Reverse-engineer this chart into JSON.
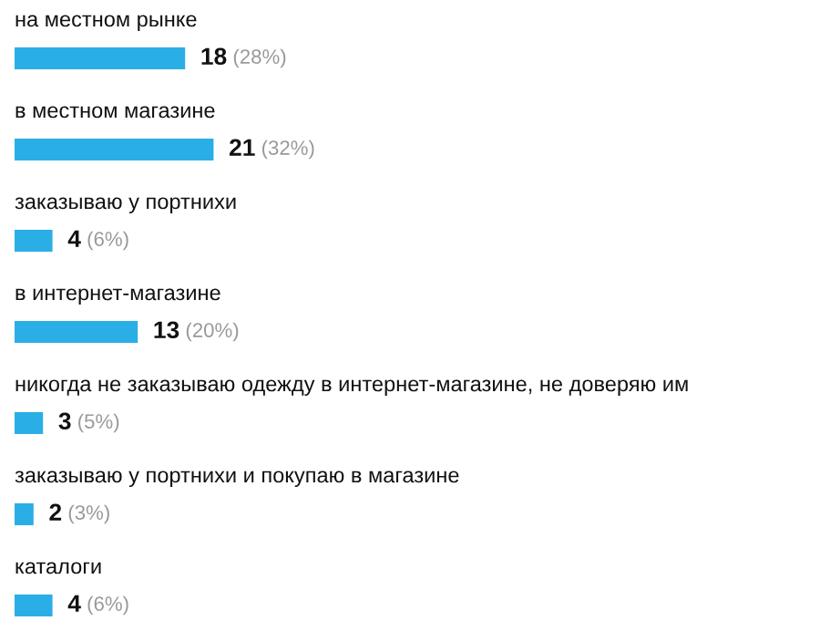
{
  "chart_data": {
    "type": "bar",
    "orientation": "horizontal",
    "categories": [
      "на местном рынке",
      "в местном магазине",
      "заказываю у портнихи",
      "в интернет-магазине",
      "никогда не заказываю одежду в интернет-магазине, не доверяю им",
      "заказываю у портнихи и покупаю в магазине",
      "каталоги"
    ],
    "values": [
      18,
      21,
      4,
      13,
      3,
      2,
      4
    ],
    "value_labels": [
      "18 (28%)",
      "21 (32%)",
      "4 (6%)",
      "13 (20%)",
      "3 (5%)",
      "2 (3%)",
      "4 (6%)"
    ],
    "color": "#2aaee6"
  }
}
